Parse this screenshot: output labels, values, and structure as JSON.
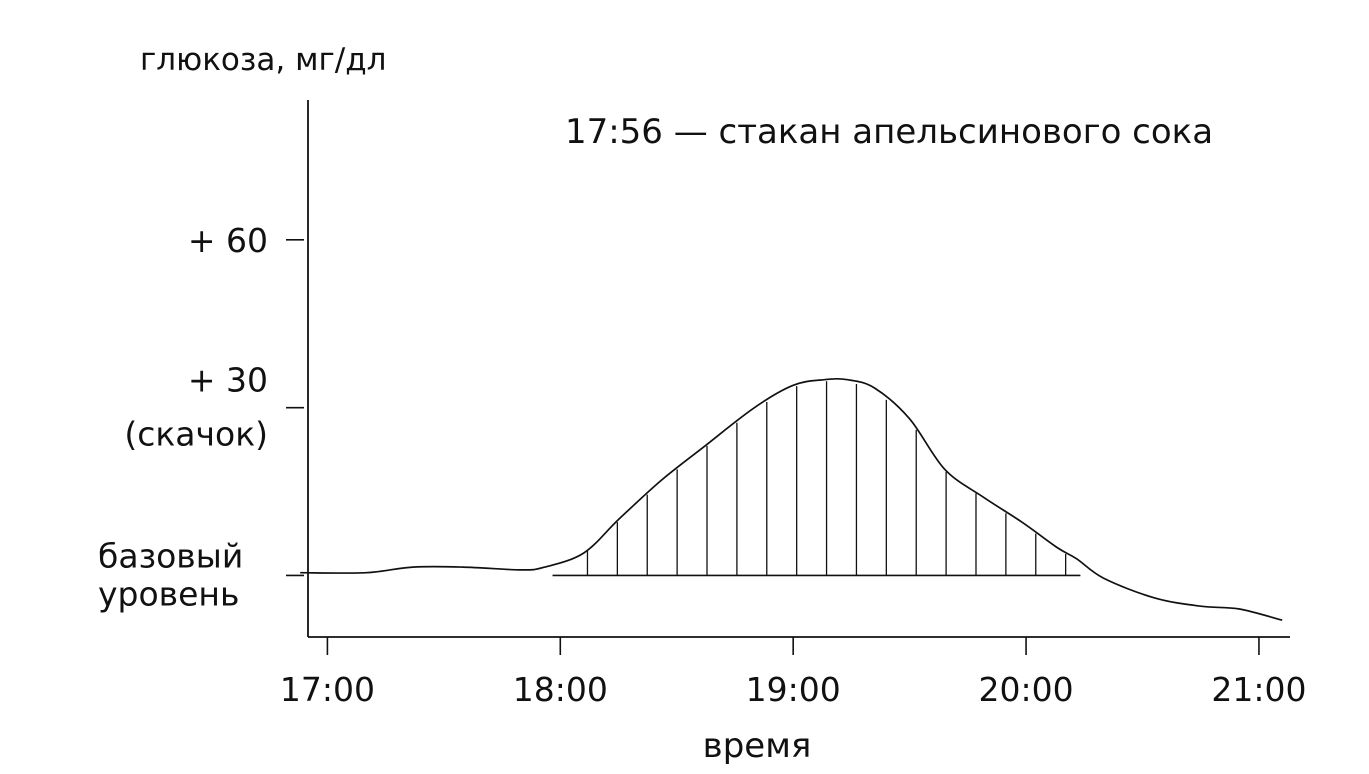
{
  "chart_data": {
    "type": "area",
    "ylabel": "глюкоза, мг/дл",
    "xlabel": "время",
    "annotation": "17:56 — стакан апельсинового сока",
    "x_ticks": [
      "17:00",
      "18:00",
      "19:00",
      "20:00",
      "21:00"
    ],
    "y_ticks": [
      {
        "value": 60,
        "label": "+ 60",
        "sublabel": ""
      },
      {
        "value": 30,
        "label": "+ 30",
        "sublabel": "(скачок)"
      },
      {
        "value": 0,
        "label": "базовый",
        "sublabel": "уровень"
      }
    ],
    "xlim": [
      "16:55",
      "21:08"
    ],
    "ylim": [
      -11,
      85
    ],
    "baseline_value": 0,
    "shaded_range": [
      "17:58",
      "20:14"
    ],
    "shaded_fill": "vertical hatching",
    "series": [
      {
        "x": [
          "16:53",
          "17:10",
          "17:22",
          "17:35",
          "17:50",
          "17:56",
          "18:06",
          "18:15",
          "18:26",
          "18:37",
          "18:50",
          "19:00",
          "19:08",
          "19:14",
          "19:21",
          "19:30",
          "19:39",
          "19:49",
          "19:59",
          "20:08",
          "20:13",
          "20:20",
          "20:33",
          "20:45",
          "20:55",
          "21:06"
        ],
        "y": [
          0.5,
          0.5,
          1.5,
          1.5,
          1,
          1.5,
          4,
          10,
          17,
          23,
          30,
          34,
          35,
          35,
          33.5,
          28,
          19,
          14,
          9.5,
          5,
          3,
          -0.5,
          -4,
          -5.5,
          -6,
          -8
        ]
      }
    ]
  }
}
